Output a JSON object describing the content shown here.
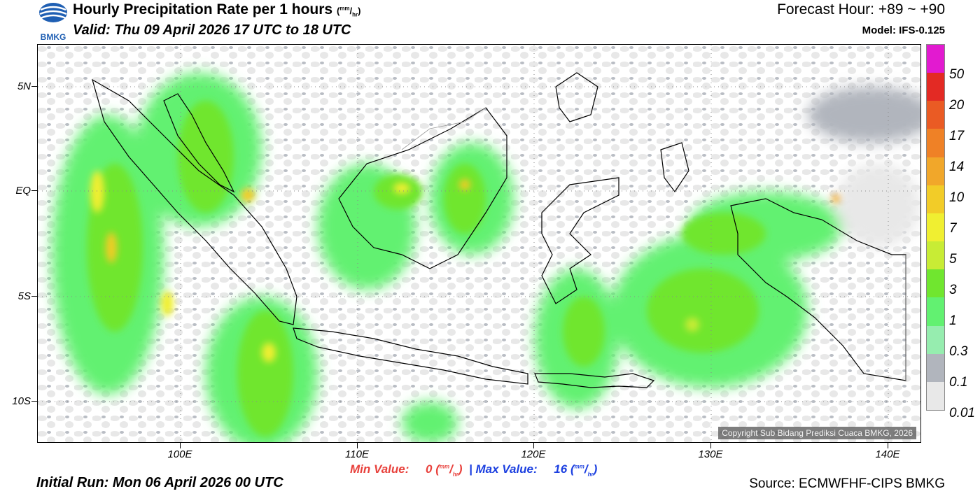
{
  "header": {
    "logo_text": "BMKG",
    "title": "Hourly Precipitation Rate per 1 hours",
    "title_unit_top": "mm",
    "title_unit_bottom": "hr",
    "valid": "Valid: Thu 09 April 2026 17 UTC to 18 UTC",
    "forecast_hour": "Forecast Hour: +89 ~ +90",
    "model": "Model: IFS-0.125"
  },
  "map": {
    "region": "Indonesia",
    "lat_labels": [
      "5N",
      "EQ",
      "5S",
      "10S"
    ],
    "lon_labels": [
      "100E",
      "110E",
      "120E",
      "130E",
      "140E"
    ],
    "gridlines": "dotted",
    "copyright": "Copyright Sub Bidang Prediksi Cuaca BMKG, 2026"
  },
  "colorbar": {
    "labels": [
      "50",
      "20",
      "17",
      "14",
      "10",
      "7",
      "5",
      "3",
      "1",
      "0.3",
      "0.1",
      "0.01"
    ],
    "colors": [
      "#e21ad0",
      "#e32a24",
      "#ea5b24",
      "#ef8126",
      "#f1a72a",
      "#f2cc28",
      "#f0ef31",
      "#c8ec35",
      "#70e62f",
      "#62f171",
      "#96edaf",
      "#b1b5bd",
      "#e8e8e8"
    ]
  },
  "stats": {
    "min_label": "Min Value:",
    "min_value": "0",
    "max_label": "Max Value:",
    "max_value": "16",
    "unit_top": "mm",
    "unit_bottom": "hr"
  },
  "footer": {
    "initial_run": "Initial Run: Mon 06 April 2026 00 UTC",
    "source": "Source: ECMWFHF-CIPS BMKG"
  }
}
